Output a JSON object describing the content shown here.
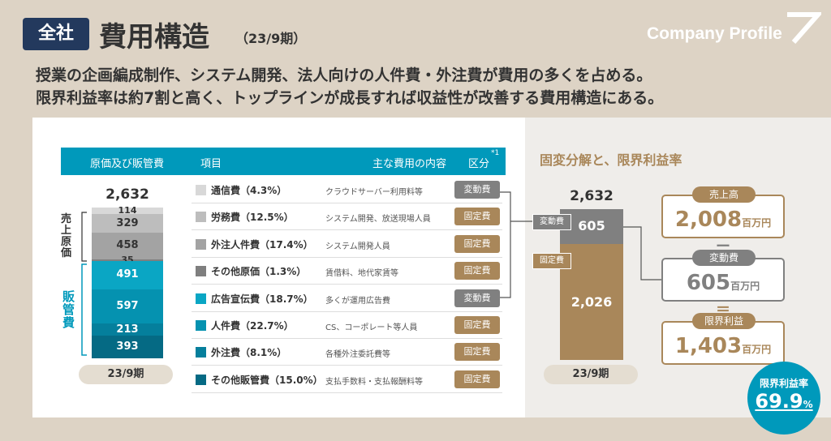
{
  "header": {
    "badge": "全社",
    "title": "費用構造",
    "period": "（23/9期）",
    "brand": "Company Profile",
    "lead_line1": "授業の企画編成制作、システム開発、法人向けの人件費・外注費が費用の多くを占める。",
    "lead_line2": "限界利益率は約7割と高く、トップラインが成長すれば収益性が改善する費用構造にある。"
  },
  "colors": {
    "navy": "#23395d",
    "teal": "#0099bb",
    "brown": "#a9875a",
    "gray": "#808080"
  },
  "table": {
    "col_cost": "原価及び販管費",
    "col_item": "項目",
    "col_content": "主な費用の内容",
    "col_class": "区分",
    "footnote_mark": "*1",
    "total": "2,632",
    "period_label": "23/9期",
    "group_cogs": "売上原価",
    "group_sga": "販管費",
    "rows": [
      {
        "name": "通信費（4.3%）",
        "content": "クラウドサーバー利用料等",
        "class": "変動費",
        "swatch": "#d8d8d8",
        "tag": "#808080"
      },
      {
        "name": "労務費（12.5%）",
        "content": "システム開発、放送現場人員",
        "class": "固定費",
        "swatch": "#bdbdbd",
        "tag": "#a9875a"
      },
      {
        "name": "外注人件費（17.4%）",
        "content": "システム開発人員",
        "class": "固定費",
        "swatch": "#a3a3a3",
        "tag": "#a9875a"
      },
      {
        "name": "その他原価（1.3%）",
        "content": "賃借料、地代家賃等",
        "class": "固定費",
        "swatch": "#7f7f7f",
        "tag": "#a9875a"
      },
      {
        "name": "広告宣伝費（18.7%）",
        "content": "多くが運用広告費",
        "class": "変動費",
        "swatch": "#0aa6c4",
        "tag": "#808080"
      },
      {
        "name": "人件費（22.7%）",
        "content": "CS、コーポレート等人員",
        "class": "固定費",
        "swatch": "#0592b0",
        "tag": "#a9875a"
      },
      {
        "name": "外注費（8.1%）",
        "content": "各種外注委託費等",
        "class": "固定費",
        "swatch": "#057f9c",
        "tag": "#a9875a"
      },
      {
        "name": "その他販管費（15.0%）",
        "content": "支払手数料・支払報酬料等",
        "class": "固定費",
        "swatch": "#056a84",
        "tag": "#a9875a"
      }
    ]
  },
  "chart_data": [
    {
      "type": "bar",
      "stacked": true,
      "categories": [
        "23/9期"
      ],
      "total": 2632,
      "series": [
        {
          "name": "通信費",
          "values": [
            114
          ]
        },
        {
          "name": "労務費",
          "values": [
            329
          ]
        },
        {
          "name": "外注人件費",
          "values": [
            458
          ]
        },
        {
          "name": "その他原価",
          "values": [
            35
          ]
        },
        {
          "name": "広告宣伝費",
          "values": [
            491
          ]
        },
        {
          "name": "人件費",
          "values": [
            597
          ]
        },
        {
          "name": "外注費",
          "values": [
            213
          ]
        },
        {
          "name": "その他販管費",
          "values": [
            393
          ]
        }
      ],
      "labels": [
        "114",
        "329",
        "458",
        "35",
        "491",
        "597",
        "213",
        "393"
      ]
    },
    {
      "type": "bar",
      "stacked": true,
      "title": "固変分解と、限界利益率",
      "categories": [
        "23/9期"
      ],
      "total": 2632,
      "total_label": "2,632",
      "series": [
        {
          "name": "変動費",
          "values": [
            605
          ],
          "label": "605"
        },
        {
          "name": "固定費",
          "values": [
            2026
          ],
          "label": "2,026"
        }
      ]
    }
  ],
  "margin": {
    "revenue_label": "売上高",
    "revenue_value": "2,008",
    "variable_label": "変動費",
    "variable_value": "605",
    "marginal_label": "限界利益",
    "marginal_value": "1,403",
    "unit": "百万円",
    "minus": "ー",
    "equals": "＝",
    "rate_label": "限界利益率",
    "rate_value": "69.9",
    "rate_unit": "%"
  },
  "right": {
    "period_label": "23/9期"
  }
}
